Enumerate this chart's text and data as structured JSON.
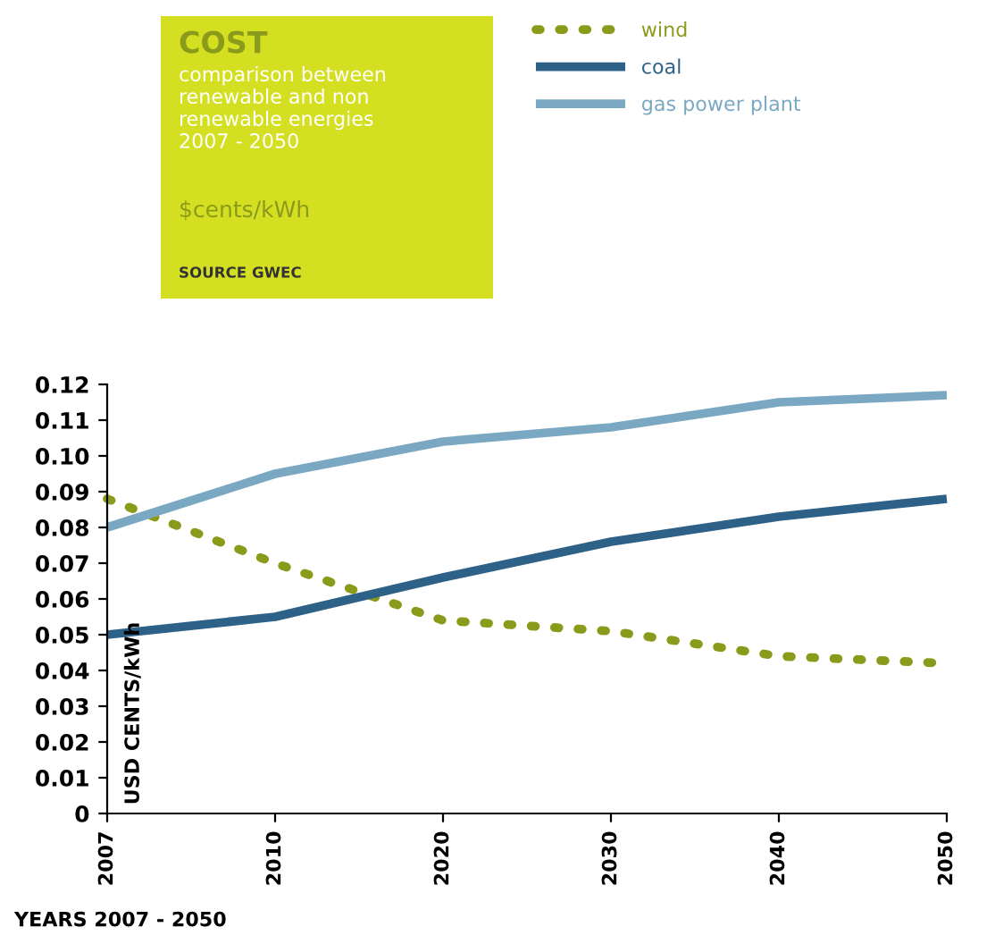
{
  "chart_data": {
    "type": "line",
    "title": "COST",
    "subtitle": "comparison between\nrenewable and non\nrenewable energies\n2007 - 2050",
    "annotations": [
      "$cents/kWh",
      "SOURCE GWEC"
    ],
    "xlabel": "YEARS 2007 - 2050",
    "ylabel": "USD CENTS/kWh",
    "categories": [
      "2007",
      "2010",
      "2020",
      "2030",
      "2040",
      "2050"
    ],
    "series": [
      {
        "name": "wind",
        "color": "#8a9a1a",
        "line_style": "dotted",
        "values": [
          0.088,
          0.07,
          0.054,
          0.051,
          0.044,
          0.042
        ]
      },
      {
        "name": "coal",
        "color": "#2e6187",
        "line_style": "solid",
        "values": [
          0.05,
          0.055,
          0.066,
          0.076,
          0.083,
          0.088
        ]
      },
      {
        "name": "gas power plant",
        "color": "#7aa7c2",
        "line_style": "solid",
        "values": [
          0.08,
          0.095,
          0.104,
          0.108,
          0.115,
          0.117
        ]
      }
    ],
    "ylim": [
      0,
      0.12
    ],
    "yticks": [
      0,
      0.01,
      0.02,
      0.03,
      0.04,
      0.05,
      0.06,
      0.07,
      0.08,
      0.09,
      {
        "value": 0.1,
        "label": "0.10"
      },
      0.11,
      0.12
    ],
    "grid": false,
    "legend": "top",
    "marker": "none"
  }
}
